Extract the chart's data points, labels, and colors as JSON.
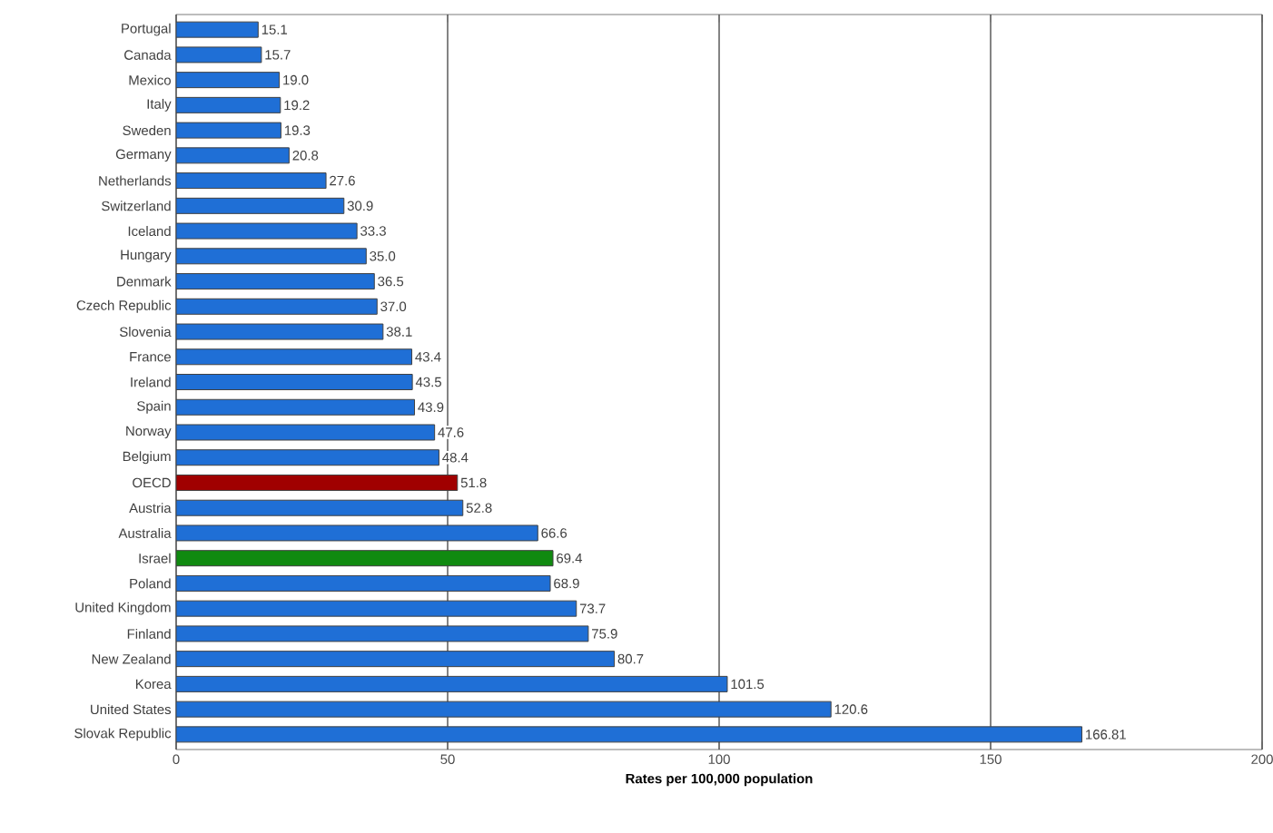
{
  "chart_data": {
    "type": "bar",
    "orientation": "horizontal",
    "xlabel": "Rates per 100,000 population",
    "categories": [
      "Portugal",
      "Canada",
      "Mexico",
      "Italy",
      "Sweden",
      "Germany",
      "Netherlands",
      "Switzerland",
      "Iceland",
      "Hungary",
      "Denmark",
      "Czech Republic",
      "Slovenia",
      "France",
      "Ireland",
      "Spain",
      "Norway",
      "Belgium",
      "OECD",
      "Austria",
      "Australia",
      "Israel",
      "Poland",
      "United Kingdom",
      "Finland",
      "New Zealand",
      "Korea",
      "United States",
      "Slovak Republic"
    ],
    "values": [
      15.1,
      15.7,
      19.0,
      19.2,
      19.3,
      20.8,
      27.6,
      30.9,
      33.3,
      35.0,
      36.5,
      37.0,
      38.1,
      43.4,
      43.5,
      43.9,
      47.6,
      48.4,
      51.8,
      52.8,
      66.6,
      69.4,
      68.9,
      73.7,
      75.9,
      80.7,
      101.5,
      120.6,
      166.81
    ],
    "value_labels": [
      "15.1",
      "15.7",
      "19.0",
      "19.2",
      "19.3",
      "20.8",
      "27.6",
      "30.9",
      "33.3",
      "35.0",
      "36.5",
      "37.0",
      "38.1",
      "43.4",
      "43.5",
      "43.9",
      "47.6",
      "48.4",
      "51.8",
      "52.8",
      "66.6",
      "69.4",
      "68.9",
      "73.7",
      "75.9",
      "80.7",
      "101.5",
      "120.6",
      "166.81"
    ],
    "colors": [
      "#1f6fd6",
      "#1f6fd6",
      "#1f6fd6",
      "#1f6fd6",
      "#1f6fd6",
      "#1f6fd6",
      "#1f6fd6",
      "#1f6fd6",
      "#1f6fd6",
      "#1f6fd6",
      "#1f6fd6",
      "#1f6fd6",
      "#1f6fd6",
      "#1f6fd6",
      "#1f6fd6",
      "#1f6fd6",
      "#1f6fd6",
      "#1f6fd6",
      "#a00000",
      "#1f6fd6",
      "#1f6fd6",
      "#108a10",
      "#1f6fd6",
      "#1f6fd6",
      "#1f6fd6",
      "#1f6fd6",
      "#1f6fd6",
      "#1f6fd6",
      "#1f6fd6"
    ],
    "xlim": [
      0,
      200
    ],
    "xticks": [
      0,
      50,
      100,
      150,
      200
    ],
    "grid": "x"
  }
}
